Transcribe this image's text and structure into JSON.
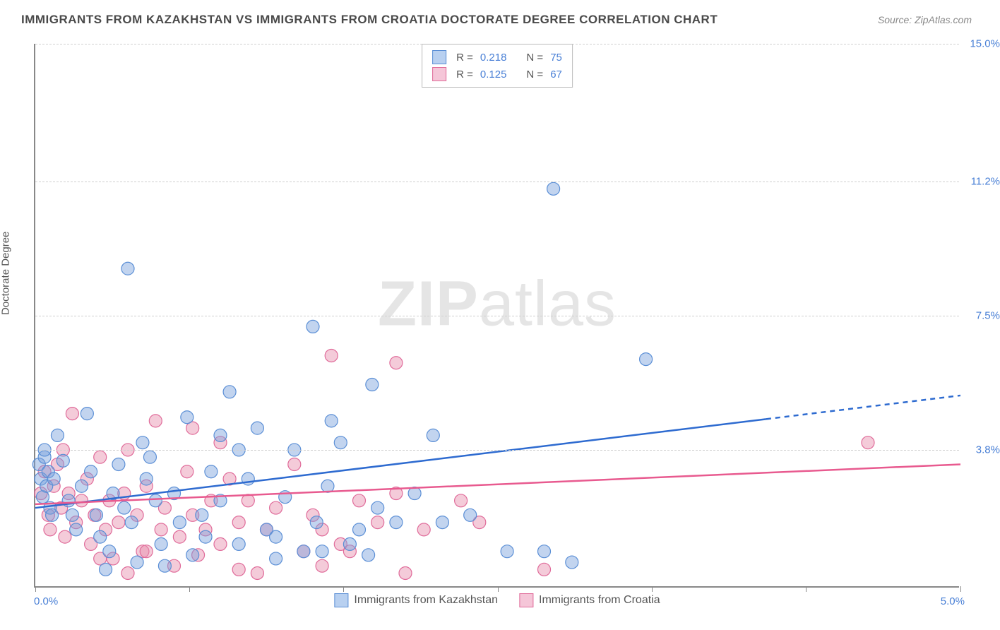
{
  "title": "IMMIGRANTS FROM KAZAKHSTAN VS IMMIGRANTS FROM CROATIA DOCTORATE DEGREE CORRELATION CHART",
  "source": "Source: ZipAtlas.com",
  "ylabel": "Doctorate Degree",
  "watermark_bold": "ZIP",
  "watermark_light": "atlas",
  "chart": {
    "type": "scatter",
    "xlim": [
      0,
      5.0
    ],
    "ylim": [
      0,
      15.0
    ],
    "xmin_label": "0.0%",
    "xmax_label": "5.0%",
    "yticks": [
      {
        "v": 3.8,
        "label": "3.8%"
      },
      {
        "v": 7.5,
        "label": "7.5%"
      },
      {
        "v": 11.2,
        "label": "11.2%"
      },
      {
        "v": 15.0,
        "label": "15.0%"
      }
    ],
    "xtick_positions": [
      0,
      0.833,
      1.666,
      2.5,
      3.333,
      4.166,
      5.0
    ],
    "background_color": "#ffffff",
    "grid_color": "#d0d0d0",
    "marker_radius": 9,
    "marker_opacity": 0.55,
    "series": [
      {
        "key": "kazakhstan",
        "label": "Immigrants from Kazakhstan",
        "R": "0.218",
        "N": "75",
        "color_fill": "rgba(120,160,220,0.45)",
        "color_stroke": "#5b8fd6",
        "swatch_fill": "#b8d0f0",
        "swatch_border": "#5b8fd6",
        "trend": {
          "x1": 0,
          "y1": 2.2,
          "x2": 5.0,
          "y2": 5.3,
          "solid_until_x": 3.95,
          "color": "#2e6bd0",
          "width": 2.5
        },
        "points": [
          [
            0.02,
            3.4
          ],
          [
            0.03,
            3.0
          ],
          [
            0.04,
            2.5
          ],
          [
            0.05,
            3.6
          ],
          [
            0.06,
            2.8
          ],
          [
            0.07,
            3.2
          ],
          [
            0.08,
            2.2
          ],
          [
            0.09,
            2.0
          ],
          [
            0.1,
            3.0
          ],
          [
            0.12,
            4.2
          ],
          [
            0.05,
            3.8
          ],
          [
            0.15,
            3.5
          ],
          [
            0.18,
            2.4
          ],
          [
            0.2,
            2.0
          ],
          [
            0.22,
            1.6
          ],
          [
            0.25,
            2.8
          ],
          [
            0.28,
            4.8
          ],
          [
            0.3,
            3.2
          ],
          [
            0.33,
            2.0
          ],
          [
            0.35,
            1.4
          ],
          [
            0.4,
            1.0
          ],
          [
            0.42,
            2.6
          ],
          [
            0.45,
            3.4
          ],
          [
            0.5,
            8.8
          ],
          [
            0.48,
            2.2
          ],
          [
            0.52,
            1.8
          ],
          [
            0.55,
            0.7
          ],
          [
            0.58,
            4.0
          ],
          [
            0.62,
            3.6
          ],
          [
            0.65,
            2.4
          ],
          [
            0.68,
            1.2
          ],
          [
            0.7,
            0.6
          ],
          [
            0.75,
            2.6
          ],
          [
            0.78,
            1.8
          ],
          [
            0.82,
            4.7
          ],
          [
            0.85,
            0.9
          ],
          [
            0.9,
            2.0
          ],
          [
            0.95,
            3.2
          ],
          [
            1.0,
            2.4
          ],
          [
            1.0,
            4.2
          ],
          [
            1.05,
            5.4
          ],
          [
            1.1,
            1.2
          ],
          [
            1.15,
            3.0
          ],
          [
            1.2,
            4.4
          ],
          [
            1.25,
            1.6
          ],
          [
            1.3,
            0.8
          ],
          [
            1.3,
            1.4
          ],
          [
            1.35,
            2.5
          ],
          [
            1.4,
            3.8
          ],
          [
            1.45,
            1.0
          ],
          [
            1.5,
            7.2
          ],
          [
            1.52,
            1.8
          ],
          [
            1.55,
            1.0
          ],
          [
            1.58,
            2.8
          ],
          [
            1.6,
            4.6
          ],
          [
            1.65,
            4.0
          ],
          [
            1.7,
            1.2
          ],
          [
            1.75,
            1.6
          ],
          [
            1.8,
            0.9
          ],
          [
            1.85,
            2.2
          ],
          [
            1.82,
            5.6
          ],
          [
            1.95,
            1.8
          ],
          [
            2.05,
            2.6
          ],
          [
            2.15,
            4.2
          ],
          [
            2.2,
            1.8
          ],
          [
            2.35,
            2.0
          ],
          [
            2.55,
            1.0
          ],
          [
            2.75,
            1.0
          ],
          [
            2.8,
            11.0
          ],
          [
            2.9,
            0.7
          ],
          [
            3.3,
            6.3
          ],
          [
            1.1,
            3.8
          ],
          [
            0.92,
            1.4
          ],
          [
            0.38,
            0.5
          ],
          [
            0.6,
            3.0
          ]
        ]
      },
      {
        "key": "croatia",
        "label": "Immigrants from Croatia",
        "R": "0.125",
        "N": "67",
        "color_fill": "rgba(230,140,170,0.45)",
        "color_stroke": "#e06b9a",
        "swatch_fill": "#f5c6d8",
        "swatch_border": "#e06b9a",
        "trend": {
          "x1": 0,
          "y1": 2.3,
          "x2": 5.0,
          "y2": 3.4,
          "solid_until_x": 5.0,
          "color": "#e85a8f",
          "width": 2.5
        },
        "points": [
          [
            0.03,
            2.6
          ],
          [
            0.05,
            3.2
          ],
          [
            0.07,
            2.0
          ],
          [
            0.08,
            1.6
          ],
          [
            0.1,
            2.8
          ],
          [
            0.12,
            3.4
          ],
          [
            0.14,
            2.2
          ],
          [
            0.16,
            1.4
          ],
          [
            0.18,
            2.6
          ],
          [
            0.2,
            4.8
          ],
          [
            0.22,
            1.8
          ],
          [
            0.25,
            2.4
          ],
          [
            0.28,
            3.0
          ],
          [
            0.3,
            1.2
          ],
          [
            0.32,
            2.0
          ],
          [
            0.35,
            3.6
          ],
          [
            0.38,
            1.6
          ],
          [
            0.4,
            2.4
          ],
          [
            0.42,
            0.8
          ],
          [
            0.45,
            1.8
          ],
          [
            0.48,
            2.6
          ],
          [
            0.5,
            3.8
          ],
          [
            0.55,
            2.0
          ],
          [
            0.58,
            1.0
          ],
          [
            0.6,
            2.8
          ],
          [
            0.65,
            4.6
          ],
          [
            0.68,
            1.6
          ],
          [
            0.7,
            2.2
          ],
          [
            0.75,
            0.6
          ],
          [
            0.78,
            1.4
          ],
          [
            0.82,
            3.2
          ],
          [
            0.85,
            2.0
          ],
          [
            0.88,
            0.9
          ],
          [
            0.92,
            1.6
          ],
          [
            0.95,
            2.4
          ],
          [
            1.0,
            1.2
          ],
          [
            1.05,
            3.0
          ],
          [
            1.1,
            0.5
          ],
          [
            1.1,
            1.8
          ],
          [
            1.15,
            2.4
          ],
          [
            1.2,
            0.4
          ],
          [
            1.25,
            1.6
          ],
          [
            1.3,
            2.2
          ],
          [
            1.4,
            3.4
          ],
          [
            1.45,
            1.0
          ],
          [
            1.5,
            2.0
          ],
          [
            1.55,
            0.6
          ],
          [
            1.55,
            1.6
          ],
          [
            1.6,
            6.4
          ],
          [
            1.65,
            1.2
          ],
          [
            1.75,
            2.4
          ],
          [
            1.85,
            1.8
          ],
          [
            1.95,
            6.2
          ],
          [
            1.95,
            2.6
          ],
          [
            2.0,
            0.4
          ],
          [
            2.1,
            1.6
          ],
          [
            2.3,
            2.4
          ],
          [
            2.4,
            1.8
          ],
          [
            2.75,
            0.5
          ],
          [
            4.5,
            4.0
          ],
          [
            0.6,
            1.0
          ],
          [
            0.5,
            0.4
          ],
          [
            0.35,
            0.8
          ],
          [
            0.85,
            4.4
          ],
          [
            1.0,
            4.0
          ],
          [
            1.7,
            1.0
          ],
          [
            0.15,
            3.8
          ]
        ]
      }
    ]
  },
  "legend_top_labels": {
    "R": "R =",
    "N": "N ="
  }
}
